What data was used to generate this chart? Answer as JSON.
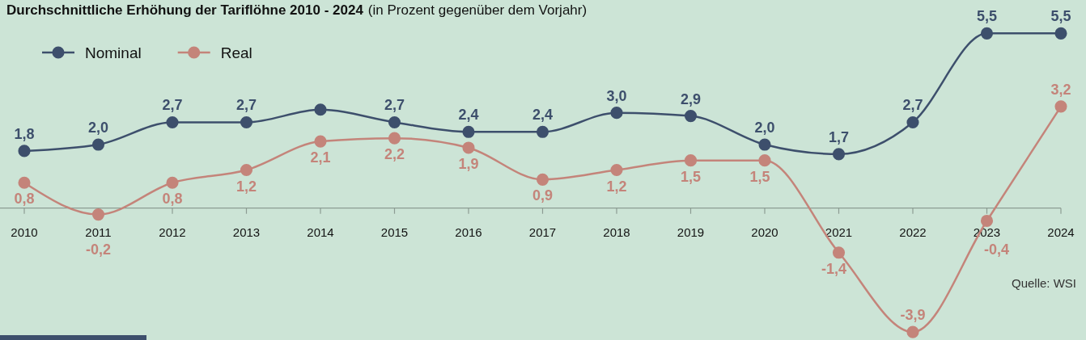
{
  "chart_data": {
    "type": "line",
    "title": "Durchschnittliche Erhöhung der Tariflöhne 2010 - 2024",
    "subtitle": "(in Prozent gegenüber dem Vorjahr)",
    "categories": [
      "2010",
      "2011",
      "2012",
      "2013",
      "2014",
      "2015",
      "2016",
      "2017",
      "2018",
      "2019",
      "2020",
      "2021",
      "2022",
      "2023",
      "2024"
    ],
    "series": [
      {
        "name": "Nominal",
        "color": "#3d4f6c",
        "values": [
          1.8,
          2.0,
          2.7,
          2.7,
          3.1,
          2.7,
          2.4,
          2.4,
          3.0,
          2.9,
          2.0,
          1.7,
          2.7,
          5.5,
          5.5
        ],
        "value_labels": [
          "1,8",
          "2,0",
          "2,7",
          "2,7",
          null,
          "2,7",
          "2,4",
          "2,4",
          "3,0",
          "2,9",
          "2,0",
          "1,7",
          "2,7",
          "5,5",
          "5,5"
        ]
      },
      {
        "name": "Real",
        "color": "#c4847a",
        "values": [
          0.8,
          -0.2,
          0.8,
          1.2,
          2.1,
          2.2,
          1.9,
          0.9,
          1.2,
          1.5,
          1.5,
          -1.4,
          -3.9,
          -0.4,
          3.2
        ],
        "value_labels": [
          "0,8",
          "-0,2",
          "0,8",
          "1,2",
          "2,1",
          "2,2",
          "1,9",
          "0,9",
          "1,2",
          "1,5",
          "1,5",
          "-1,4",
          "-3,9",
          "-0,4",
          "3,2"
        ]
      }
    ],
    "ylim": [
      -4.15,
      6.55
    ],
    "legend": "top left",
    "marker": "circle",
    "annotations": [
      "Quelle: WSI"
    ]
  }
}
